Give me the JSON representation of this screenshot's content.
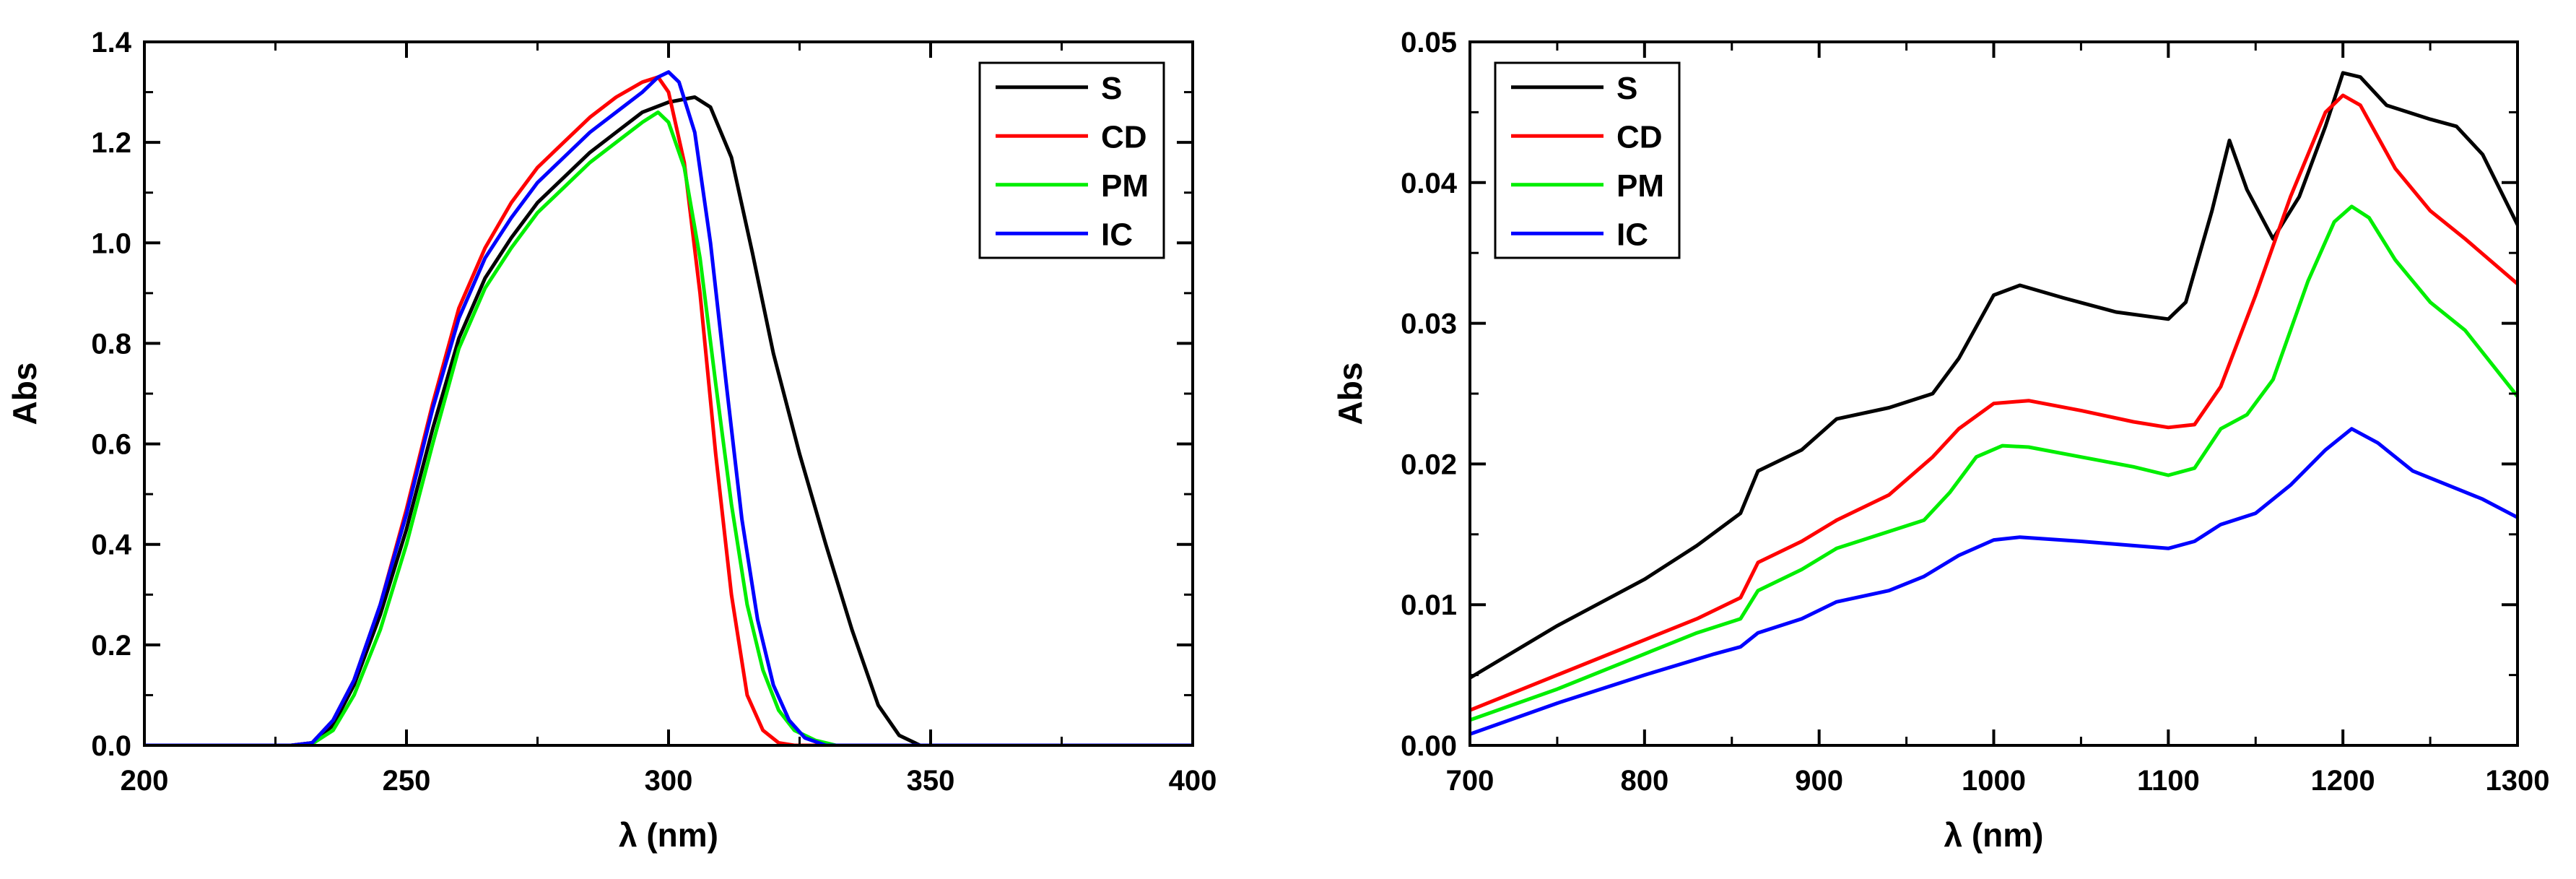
{
  "chart_data": [
    {
      "type": "line",
      "xlabel": "λ (nm)",
      "ylabel": "Abs",
      "xlim": [
        200,
        400
      ],
      "ylim": [
        0,
        1.4
      ],
      "xticks": [
        200,
        250,
        300,
        350,
        400
      ],
      "xtick_labels": [
        "200",
        "250",
        "300",
        "350",
        "400"
      ],
      "yticks": [
        0.0,
        0.2,
        0.4,
        0.6,
        0.8,
        1.0,
        1.2,
        1.4
      ],
      "ytick_labels": [
        "0.0",
        "0.2",
        "0.4",
        "0.6",
        "0.8",
        "1.0",
        "1.2",
        "1.4"
      ],
      "legend_position": "top-right",
      "series": [
        {
          "name": "S",
          "color": "#000000",
          "x": [
            200,
            228,
            232,
            236,
            240,
            245,
            250,
            255,
            260,
            265,
            270,
            275,
            280,
            285,
            290,
            295,
            300,
            305,
            308,
            312,
            316,
            320,
            325,
            330,
            335,
            340,
            344,
            348,
            400
          ],
          "y": [
            0,
            0,
            0.005,
            0.04,
            0.12,
            0.26,
            0.43,
            0.63,
            0.81,
            0.93,
            1.01,
            1.08,
            1.13,
            1.18,
            1.22,
            1.26,
            1.28,
            1.29,
            1.27,
            1.17,
            0.98,
            0.78,
            0.58,
            0.4,
            0.23,
            0.08,
            0.02,
            0,
            0
          ]
        },
        {
          "name": "CD",
          "color": "#ff0000",
          "x": [
            200,
            228,
            232,
            236,
            240,
            245,
            250,
            255,
            260,
            265,
            270,
            275,
            280,
            285,
            290,
            295,
            298,
            300,
            303,
            306,
            309,
            312,
            315,
            318,
            321,
            324,
            400
          ],
          "y": [
            0,
            0,
            0.005,
            0.05,
            0.13,
            0.28,
            0.47,
            0.68,
            0.87,
            0.99,
            1.08,
            1.15,
            1.2,
            1.25,
            1.29,
            1.32,
            1.33,
            1.3,
            1.16,
            0.9,
            0.58,
            0.3,
            0.1,
            0.03,
            0.005,
            0,
            0
          ]
        },
        {
          "name": "PM",
          "color": "#00ee00",
          "x": [
            200,
            228,
            232,
            236,
            240,
            245,
            250,
            255,
            260,
            265,
            270,
            275,
            280,
            285,
            290,
            295,
            298,
            300,
            303,
            306,
            309,
            312,
            315,
            318,
            321,
            324,
            328,
            332,
            400
          ],
          "y": [
            0,
            0,
            0.003,
            0.03,
            0.1,
            0.23,
            0.4,
            0.6,
            0.79,
            0.91,
            0.99,
            1.06,
            1.11,
            1.16,
            1.2,
            1.24,
            1.26,
            1.24,
            1.15,
            0.97,
            0.72,
            0.48,
            0.28,
            0.15,
            0.07,
            0.03,
            0.01,
            0,
            0
          ]
        },
        {
          "name": "IC",
          "color": "#0000ff",
          "x": [
            200,
            228,
            232,
            236,
            240,
            245,
            250,
            255,
            260,
            265,
            270,
            275,
            280,
            285,
            290,
            295,
            298,
            300,
            302,
            305,
            308,
            311,
            314,
            317,
            320,
            323,
            326,
            330,
            400
          ],
          "y": [
            0,
            0,
            0.005,
            0.05,
            0.13,
            0.28,
            0.46,
            0.67,
            0.85,
            0.97,
            1.05,
            1.12,
            1.17,
            1.22,
            1.26,
            1.3,
            1.33,
            1.34,
            1.32,
            1.22,
            1.0,
            0.72,
            0.45,
            0.25,
            0.12,
            0.05,
            0.015,
            0,
            0
          ]
        }
      ]
    },
    {
      "type": "line",
      "xlabel": "λ (nm)",
      "ylabel": "Abs",
      "xlim": [
        700,
        1300
      ],
      "ylim": [
        0,
        0.05
      ],
      "xticks": [
        700,
        800,
        900,
        1000,
        1100,
        1200,
        1300
      ],
      "xtick_labels": [
        "700",
        "800",
        "900",
        "1000",
        "1100",
        "1200",
        "1300"
      ],
      "yticks": [
        0.0,
        0.01,
        0.02,
        0.03,
        0.04,
        0.05
      ],
      "ytick_labels": [
        "0.00",
        "0.01",
        "0.02",
        "0.03",
        "0.04",
        "0.05"
      ],
      "legend_position": "top-left",
      "series": [
        {
          "name": "S",
          "color": "#000000",
          "x": [
            700,
            750,
            800,
            830,
            855,
            865,
            890,
            910,
            940,
            965,
            980,
            1000,
            1015,
            1040,
            1070,
            1100,
            1110,
            1125,
            1135,
            1145,
            1160,
            1175,
            1190,
            1200,
            1210,
            1225,
            1250,
            1265,
            1280,
            1300
          ],
          "y": [
            0.0048,
            0.0085,
            0.0118,
            0.0142,
            0.0165,
            0.0195,
            0.021,
            0.0232,
            0.024,
            0.025,
            0.0275,
            0.032,
            0.0327,
            0.0318,
            0.0308,
            0.0303,
            0.0315,
            0.038,
            0.043,
            0.0395,
            0.036,
            0.039,
            0.044,
            0.0478,
            0.0475,
            0.0455,
            0.0445,
            0.044,
            0.042,
            0.037
          ]
        },
        {
          "name": "CD",
          "color": "#ff0000",
          "x": [
            700,
            750,
            800,
            830,
            855,
            865,
            890,
            910,
            940,
            965,
            980,
            1000,
            1020,
            1050,
            1080,
            1100,
            1115,
            1130,
            1150,
            1170,
            1190,
            1200,
            1210,
            1230,
            1250,
            1270,
            1300
          ],
          "y": [
            0.0025,
            0.005,
            0.0075,
            0.009,
            0.0105,
            0.013,
            0.0145,
            0.016,
            0.0178,
            0.0205,
            0.0225,
            0.0243,
            0.0245,
            0.0238,
            0.023,
            0.0226,
            0.0228,
            0.0255,
            0.032,
            0.039,
            0.045,
            0.0462,
            0.0455,
            0.041,
            0.038,
            0.036,
            0.0328
          ]
        },
        {
          "name": "PM",
          "color": "#00ee00",
          "x": [
            700,
            750,
            800,
            830,
            855,
            865,
            890,
            910,
            940,
            960,
            975,
            990,
            1005,
            1020,
            1050,
            1080,
            1100,
            1115,
            1130,
            1145,
            1160,
            1180,
            1195,
            1205,
            1215,
            1230,
            1250,
            1270,
            1300
          ],
          "y": [
            0.0018,
            0.004,
            0.0065,
            0.008,
            0.009,
            0.011,
            0.0125,
            0.014,
            0.0152,
            0.016,
            0.018,
            0.0205,
            0.0213,
            0.0212,
            0.0205,
            0.0198,
            0.0192,
            0.0197,
            0.0225,
            0.0235,
            0.026,
            0.033,
            0.0372,
            0.0383,
            0.0375,
            0.0345,
            0.0315,
            0.0295,
            0.0248
          ]
        },
        {
          "name": "IC",
          "color": "#0000ff",
          "x": [
            700,
            750,
            800,
            840,
            855,
            865,
            890,
            910,
            940,
            960,
            980,
            1000,
            1015,
            1050,
            1080,
            1100,
            1115,
            1130,
            1150,
            1170,
            1190,
            1205,
            1220,
            1240,
            1260,
            1280,
            1300
          ],
          "y": [
            0.0008,
            0.003,
            0.005,
            0.0065,
            0.007,
            0.008,
            0.009,
            0.0102,
            0.011,
            0.012,
            0.0135,
            0.0146,
            0.0148,
            0.0145,
            0.0142,
            0.014,
            0.0145,
            0.0157,
            0.0165,
            0.0185,
            0.021,
            0.0225,
            0.0215,
            0.0195,
            0.0185,
            0.0175,
            0.0162
          ]
        }
      ]
    }
  ]
}
